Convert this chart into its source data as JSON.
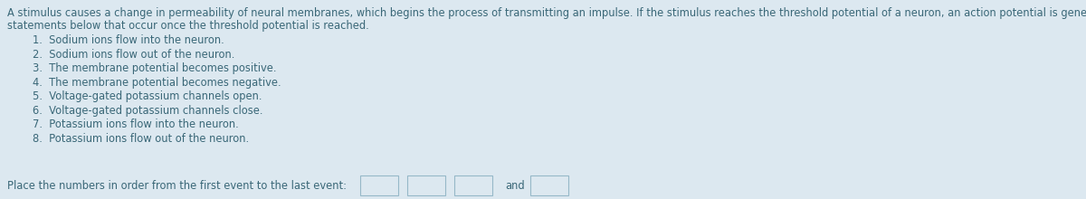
{
  "background_color": "#dce8f0",
  "text_color": "#3a6878",
  "intro_line1": "A stimulus causes a change in permeability of neural membranes, which begins the process of transmitting an impulse. If the stimulus reaches the threshold potential of a neuron, an action potential is generated. Select the numbers of the",
  "intro_line2": "statements below that occur once the threshold potential is reached.",
  "items": [
    "1.  Sodium ions flow into the neuron.",
    "2.  Sodium ions flow out of the neuron.",
    "3.  The membrane potential becomes positive.",
    "4.  The membrane potential becomes negative.",
    "5.  Voltage-gated potassium channels open.",
    "6.  Voltage-gated potassium channels close.",
    "7.  Potassium ions flow into the neuron.",
    "8.  Potassium ions flow out of the neuron."
  ],
  "bottom_label": "Place the numbers in order from the first event to the last event:",
  "and_text": "and",
  "font_size": 8.3,
  "item_indent": 0.038,
  "box_edge_color": "#96b8c8",
  "box_face_color": "#dce8f0"
}
